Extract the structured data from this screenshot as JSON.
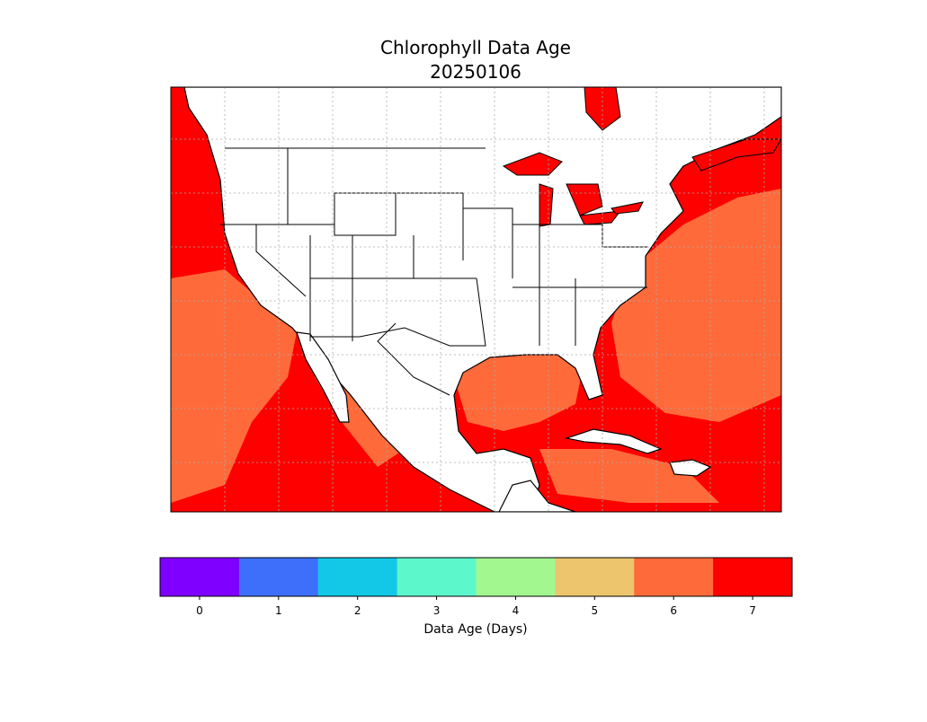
{
  "title": "Chlorophyll Data Age",
  "date": "20250106",
  "colorbar": {
    "label": "Data Age (Days)",
    "ticks": [
      0,
      1,
      2,
      3,
      4,
      5,
      6,
      7
    ],
    "colors": [
      "#7f00ff",
      "#3d6ffb",
      "#12c8e6",
      "#5cf8cb",
      "#a2f88f",
      "#ecc56d",
      "#ff6a3a",
      "#ff0000"
    ]
  }
}
